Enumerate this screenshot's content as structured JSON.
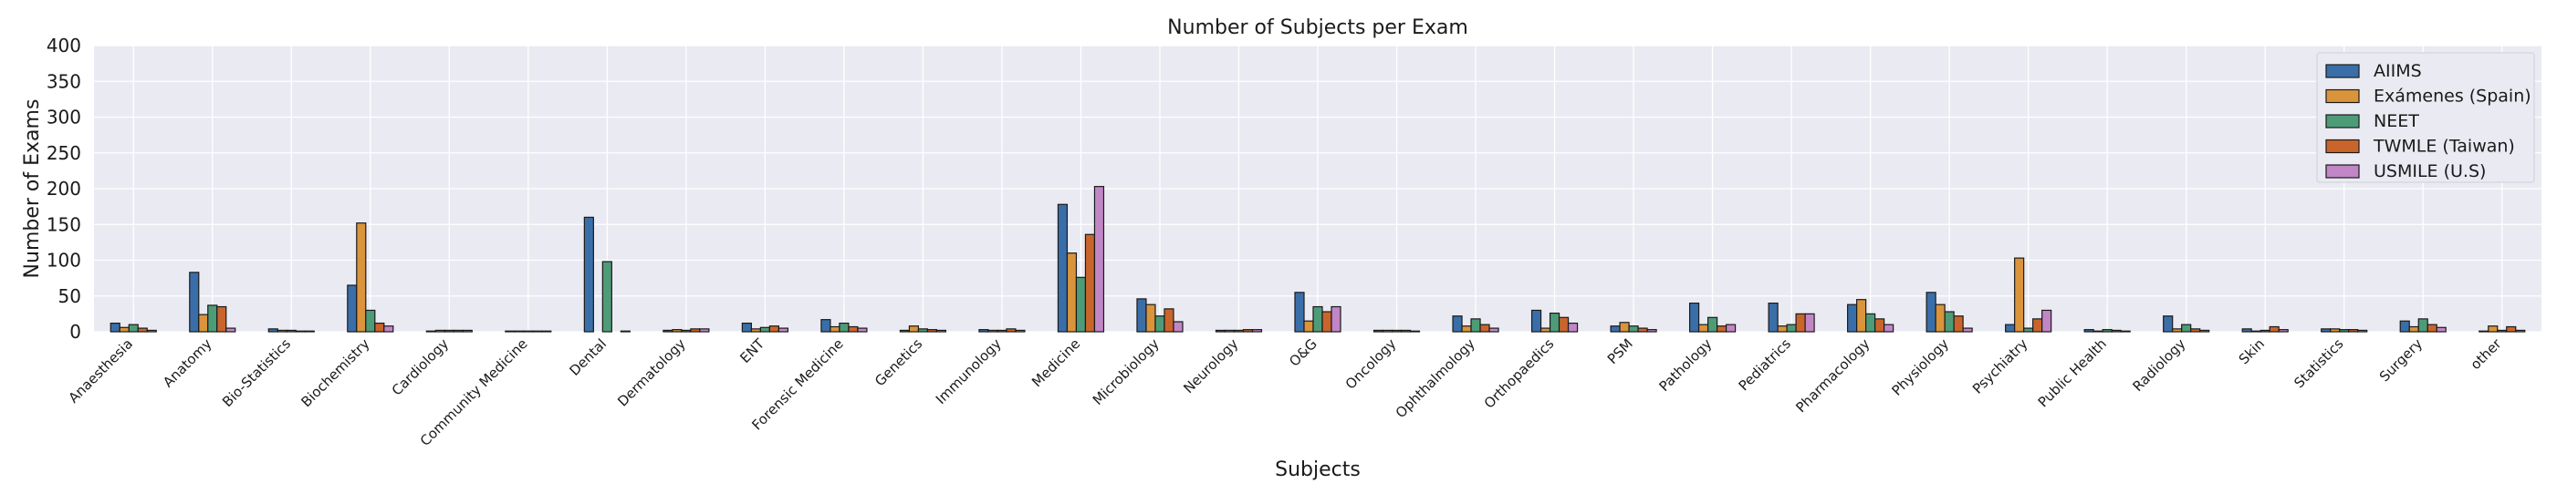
{
  "chart_data": {
    "type": "bar",
    "title": "Number of Subjects per Exam",
    "xlabel": "Subjects",
    "ylabel": "Number of Exams",
    "ylim": [
      0,
      400
    ],
    "yticks": [
      0,
      50,
      100,
      150,
      200,
      250,
      300,
      350,
      400
    ],
    "grid": true,
    "legend_position": "top-right",
    "categories": [
      "Anaesthesia",
      "Anatomy",
      "Bio-Statistics",
      "Biochemistry",
      "Cardiology",
      "Community Medicine",
      "Dental",
      "Dermatology",
      "ENT",
      "Forensic Medicine",
      "Genetics",
      "Immunology",
      "Medicine",
      "Microbiology",
      "Neurology",
      "O&G",
      "Oncology",
      "Ophthalmology",
      "Orthopaedics",
      "PSM",
      "Pathology",
      "Pediatrics",
      "Pharmacology",
      "Physiology",
      "Psychiatry",
      "Public Health",
      "Radiology",
      "Skin",
      "Statistics",
      "Surgery",
      "other"
    ],
    "series": [
      {
        "name": "AIIMS",
        "color": "#3a6ea8",
        "values": [
          12,
          83,
          4,
          65,
          1,
          1,
          160,
          2,
          12,
          17,
          2,
          3,
          178,
          46,
          2,
          55,
          2,
          22,
          30,
          8,
          40,
          40,
          38,
          55,
          10,
          3,
          22,
          4,
          4,
          15,
          1
        ]
      },
      {
        "name": "Exámenes (Spain)",
        "color": "#d9943c",
        "values": [
          6,
          24,
          2,
          152,
          2,
          1,
          0,
          3,
          4,
          7,
          8,
          2,
          110,
          38,
          2,
          15,
          2,
          8,
          5,
          13,
          10,
          8,
          45,
          38,
          103,
          1,
          4,
          1,
          4,
          7,
          8
        ]
      },
      {
        "name": "NEET",
        "color": "#4e9b78",
        "values": [
          10,
          37,
          2,
          30,
          2,
          1,
          98,
          2,
          6,
          12,
          4,
          2,
          76,
          22,
          2,
          35,
          2,
          18,
          26,
          8,
          20,
          10,
          25,
          28,
          5,
          3,
          10,
          2,
          3,
          18,
          2
        ]
      },
      {
        "name": "TWMLE (Taiwan)",
        "color": "#c9652c",
        "values": [
          5,
          35,
          1,
          12,
          2,
          1,
          0,
          4,
          8,
          7,
          3,
          4,
          136,
          32,
          3,
          28,
          2,
          10,
          20,
          5,
          8,
          25,
          18,
          22,
          18,
          2,
          4,
          7,
          3,
          10,
          7
        ]
      },
      {
        "name": "USMILE (U.S)",
        "color": "#c186c6",
        "values": [
          2,
          5,
          1,
          8,
          2,
          1,
          1,
          4,
          5,
          5,
          2,
          2,
          203,
          14,
          3,
          35,
          1,
          5,
          12,
          3,
          10,
          25,
          10,
          5,
          30,
          1,
          2,
          3,
          2,
          6,
          2
        ]
      }
    ]
  }
}
